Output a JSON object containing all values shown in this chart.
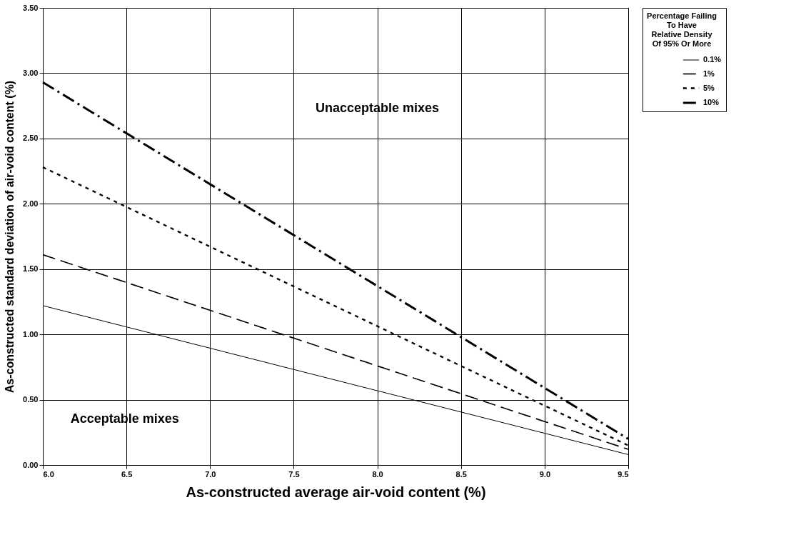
{
  "chart_data": {
    "type": "line",
    "xlabel": "As-constructed average air-void content (%)",
    "ylabel": "As-constructed standard deviation of air-void content (%)",
    "legend_title": "Percentage Failing\nTo Have\nRelative Density\nOf 95% Or More",
    "x": [
      6.0,
      9.5
    ],
    "series": [
      {
        "name": "0.1%",
        "color": "#000000",
        "line_style": "solid",
        "values": [
          1.22,
          0.08
        ]
      },
      {
        "name": "1%",
        "color": "#000000",
        "line_style": "dashed",
        "values": [
          1.61,
          0.12
        ]
      },
      {
        "name": "5%",
        "color": "#000000",
        "line_style": "dotted",
        "values": [
          2.28,
          0.15
        ]
      },
      {
        "name": "10%",
        "color": "#000000",
        "line_style": "dashdot",
        "values": [
          2.93,
          0.2
        ]
      }
    ],
    "xlim": [
      6.0,
      9.5
    ],
    "xticks": [
      {
        "value": 6,
        "label": "6.0"
      },
      6.5,
      {
        "value": 7,
        "label": "7.0"
      },
      7.5,
      {
        "value": 8,
        "label": "8.0"
      },
      8.5,
      {
        "value": 9,
        "label": "9.0"
      },
      9.5
    ],
    "ylim": [
      0,
      3.5
    ],
    "yticks": [
      {
        "value": 0,
        "label": "0.00"
      },
      {
        "value": 0.5,
        "label": "0.50"
      },
      {
        "value": 1,
        "label": "1.00"
      },
      {
        "value": 1.5,
        "label": "1.50"
      },
      {
        "value": 2,
        "label": "2.00"
      },
      {
        "value": 2.5,
        "label": "2.50"
      },
      {
        "value": 3,
        "label": "3.00"
      },
      {
        "value": 3.5,
        "label": "3.50"
      }
    ],
    "annotations": [
      "Unacceptable mixes",
      "Acceptable mixes"
    ],
    "grid": true,
    "legend": "right",
    "marker": "none"
  }
}
